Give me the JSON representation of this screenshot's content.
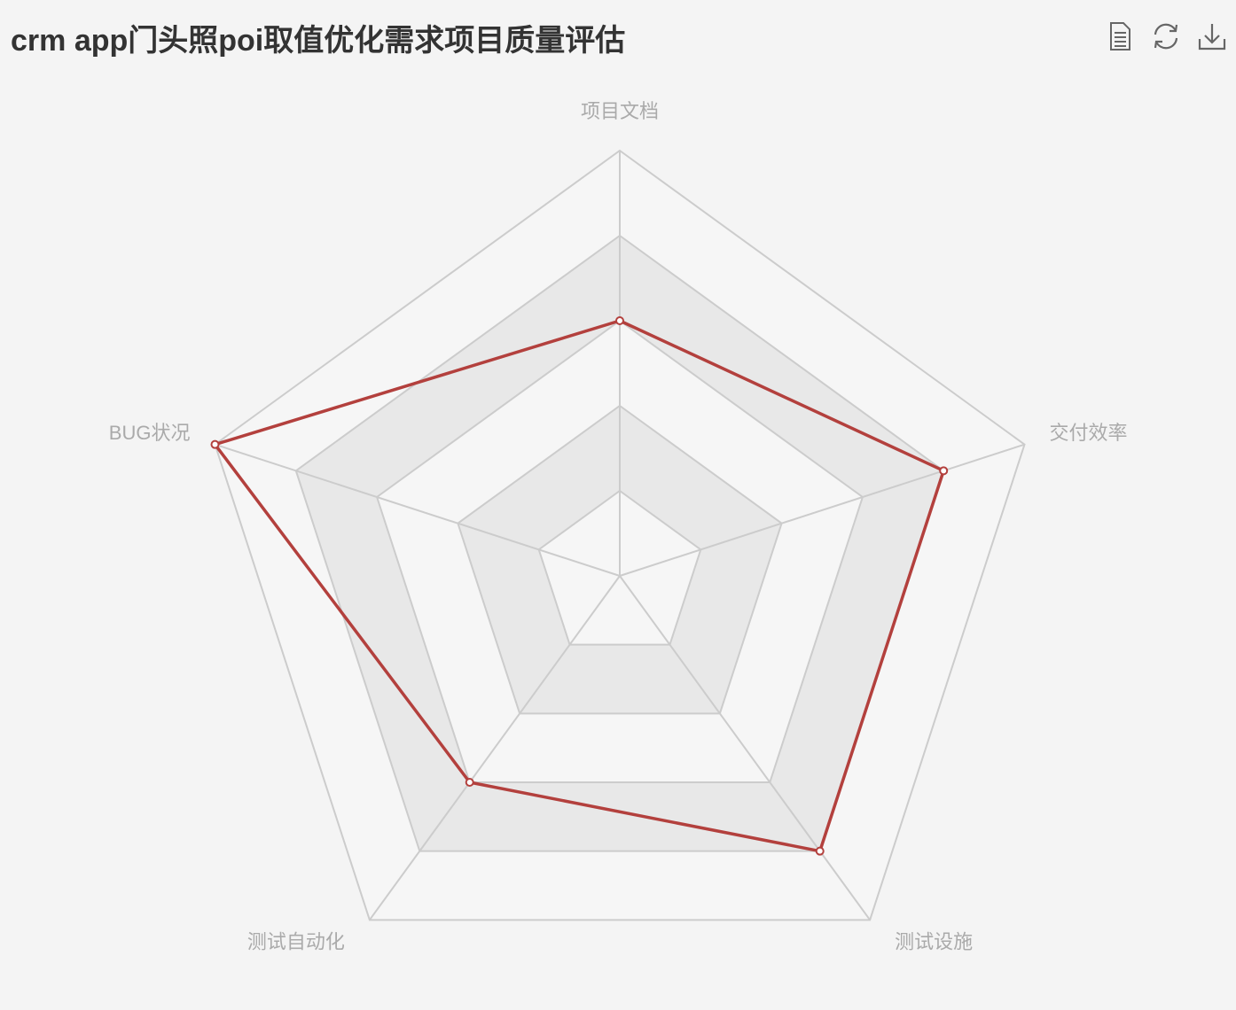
{
  "title": "crm app门头照poi取值优化需求项目质量评估",
  "toolbox": {
    "items": [
      {
        "name": "data-view-icon"
      },
      {
        "name": "restore-icon"
      },
      {
        "name": "save-image-icon"
      }
    ]
  },
  "chart_data": {
    "type": "radar",
    "indicators": [
      {
        "name": "项目文档",
        "max": 5
      },
      {
        "name": "交付效率",
        "max": 5
      },
      {
        "name": "测试设施",
        "max": 5
      },
      {
        "name": "测试自动化",
        "max": 5
      },
      {
        "name": "BUG状况",
        "max": 5
      }
    ],
    "split_number": 5,
    "series": [
      {
        "values": [
          3,
          4,
          4,
          3,
          5
        ],
        "color": "#b3403d"
      }
    ],
    "colors": {
      "split_area": [
        "#f6f6f6",
        "#e8e8e8"
      ],
      "split_line": "#cccccc",
      "axis_line": "#cccccc",
      "label": "#aaaaaa"
    }
  }
}
